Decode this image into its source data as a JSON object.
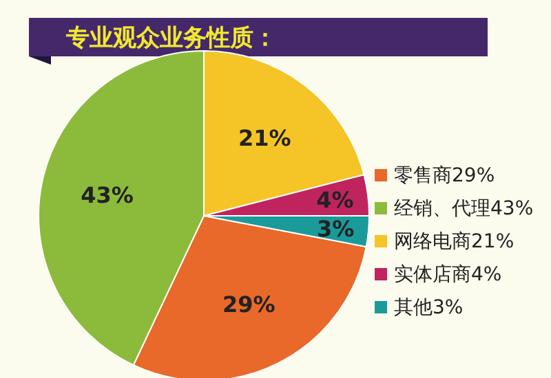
{
  "chart_data": {
    "type": "pie",
    "title": "专业观众业务性质：",
    "categories": [
      "零售商29%",
      "经销、代理43%",
      "网络电商21%",
      "实体店商4%",
      "其他3%"
    ],
    "values": [
      29,
      43,
      21,
      4,
      3
    ],
    "value_labels": [
      "29%",
      "43%",
      "21%",
      "4%",
      "3%"
    ],
    "colors": [
      "#e8692a",
      "#8cbb3c",
      "#f5c527",
      "#c0245f",
      "#1b9a9a"
    ],
    "legend": "right"
  }
}
